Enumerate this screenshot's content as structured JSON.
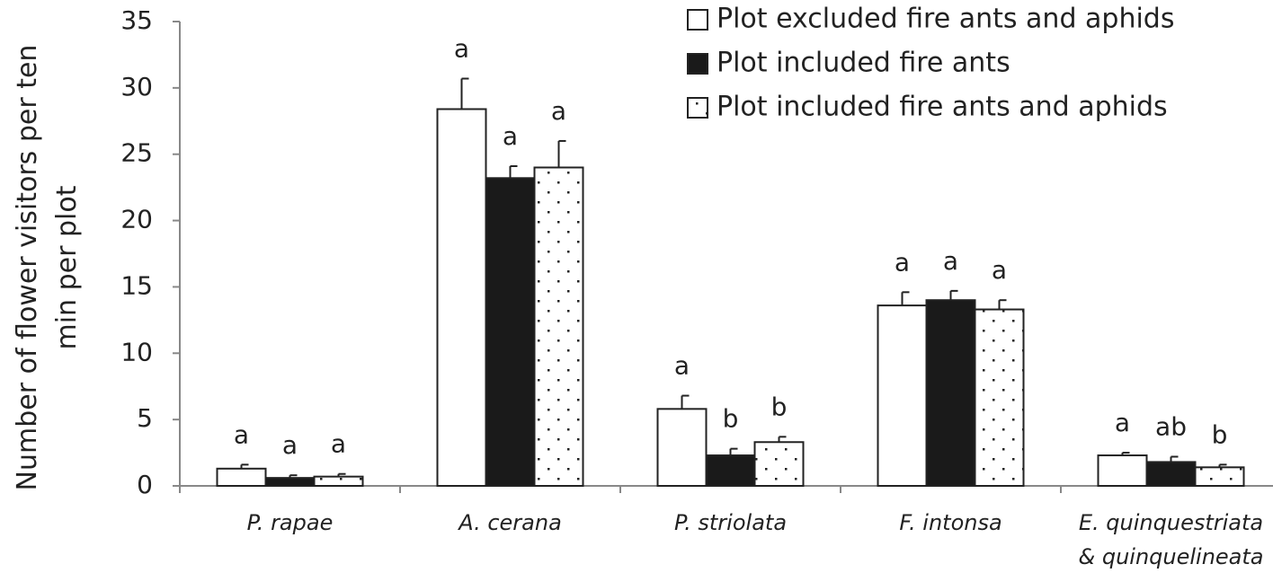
{
  "chart_data": {
    "type": "bar",
    "ylabel": "Number of flower visitors per ten min per plot",
    "categories": [
      "P. rapae",
      "A. cerana",
      "P. striolata",
      "F. intonsa",
      "E. quinquestriata & quinquelineata"
    ],
    "series": [
      {
        "name": "Plot excluded fire ants and aphids",
        "color": "#ffffff",
        "pattern": "none",
        "values": [
          1.3,
          28.4,
          5.8,
          13.6,
          2.3
        ],
        "errors": [
          0.3,
          2.3,
          1.0,
          1.0,
          0.2
        ],
        "letters": [
          "a",
          "a",
          "a",
          "a",
          "a"
        ]
      },
      {
        "name": "Plot included fire ants",
        "color": "#1a1a1a",
        "pattern": "none",
        "values": [
          0.6,
          23.2,
          2.3,
          14.0,
          1.8
        ],
        "errors": [
          0.2,
          0.9,
          0.5,
          0.7,
          0.4
        ],
        "letters": [
          "a",
          "a",
          "b",
          "a",
          "ab"
        ]
      },
      {
        "name": "Plot included fire ants and aphids",
        "color": "#ffffff",
        "pattern": "dots",
        "values": [
          0.7,
          24.0,
          3.3,
          13.3,
          1.4
        ],
        "errors": [
          0.2,
          2.0,
          0.4,
          0.7,
          0.2
        ],
        "letters": [
          "a",
          "a",
          "b",
          "a",
          "b"
        ]
      }
    ],
    "ylim": [
      0,
      35
    ],
    "yticks": [
      0,
      5,
      10,
      15,
      20,
      25,
      30,
      35
    ],
    "grid": false,
    "legend": "top-right"
  }
}
